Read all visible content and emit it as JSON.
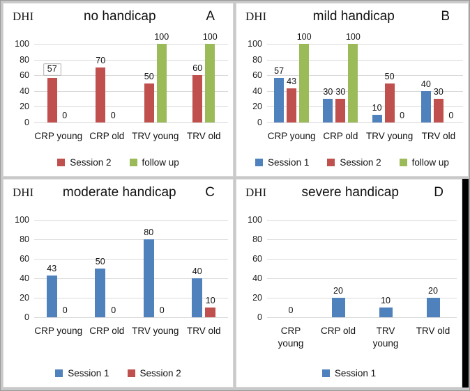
{
  "figure": {
    "axis_label": "DHI",
    "colors": {
      "session1": "#4F81BD",
      "session2": "#C0504D",
      "followup": "#9BBB59",
      "gridline": "#d9d9d9"
    }
  },
  "chart_data": [
    {
      "type": "bar",
      "panel_letter": "A",
      "title": "no handicap",
      "ylabel": "DHI",
      "ylim": [
        0,
        100
      ],
      "yticks": [
        0,
        20,
        40,
        60,
        80,
        100
      ],
      "grid": true,
      "legend_position": "bottom",
      "categories": [
        "CRP young",
        "CRP old",
        "TRV young",
        "TRV old"
      ],
      "series": [
        {
          "name": "Session 2",
          "color": "#C0504D",
          "values": [
            57,
            70,
            50,
            60
          ]
        },
        {
          "name": "follow up",
          "color": "#9BBB59",
          "values": [
            0,
            0,
            100,
            100
          ]
        }
      ],
      "boxed_label": {
        "series": 0,
        "category": 0
      }
    },
    {
      "type": "bar",
      "panel_letter": "B",
      "title": "mild handicap",
      "ylabel": "DHI",
      "ylim": [
        0,
        100
      ],
      "yticks": [
        0,
        20,
        40,
        60,
        80,
        100
      ],
      "grid": true,
      "legend_position": "bottom",
      "categories": [
        "CRP young",
        "CRP old",
        "TRV young",
        "TRV old"
      ],
      "series": [
        {
          "name": "Session 1",
          "color": "#4F81BD",
          "values": [
            57,
            30,
            10,
            40
          ]
        },
        {
          "name": "Session 2",
          "color": "#C0504D",
          "values": [
            43,
            30,
            50,
            30
          ]
        },
        {
          "name": "follow up",
          "color": "#9BBB59",
          "values": [
            100,
            100,
            0,
            0
          ]
        }
      ]
    },
    {
      "type": "bar",
      "panel_letter": "C",
      "title": "moderate handicap",
      "ylabel": "DHI",
      "ylim": [
        0,
        100
      ],
      "yticks": [
        0,
        20,
        40,
        60,
        80,
        100
      ],
      "grid": true,
      "legend_position": "bottom",
      "categories": [
        "CRP young",
        "CRP old",
        "TRV young",
        "TRV old"
      ],
      "series": [
        {
          "name": "Session 1",
          "color": "#4F81BD",
          "values": [
            43,
            50,
            80,
            40
          ]
        },
        {
          "name": "Session 2",
          "color": "#C0504D",
          "values": [
            0,
            0,
            0,
            10
          ]
        }
      ]
    },
    {
      "type": "bar",
      "panel_letter": "D",
      "title": "severe handicap",
      "ylabel": "DHI",
      "ylim": [
        0,
        100
      ],
      "yticks": [
        0,
        20,
        40,
        60,
        80,
        100
      ],
      "grid": true,
      "legend_position": "bottom",
      "categories": [
        "CRP\nyoung",
        "CRP old",
        "TRV\nyoung",
        "TRV old"
      ],
      "series": [
        {
          "name": "Session 1",
          "color": "#4F81BD",
          "values": [
            0,
            20,
            10,
            20
          ]
        }
      ]
    }
  ]
}
